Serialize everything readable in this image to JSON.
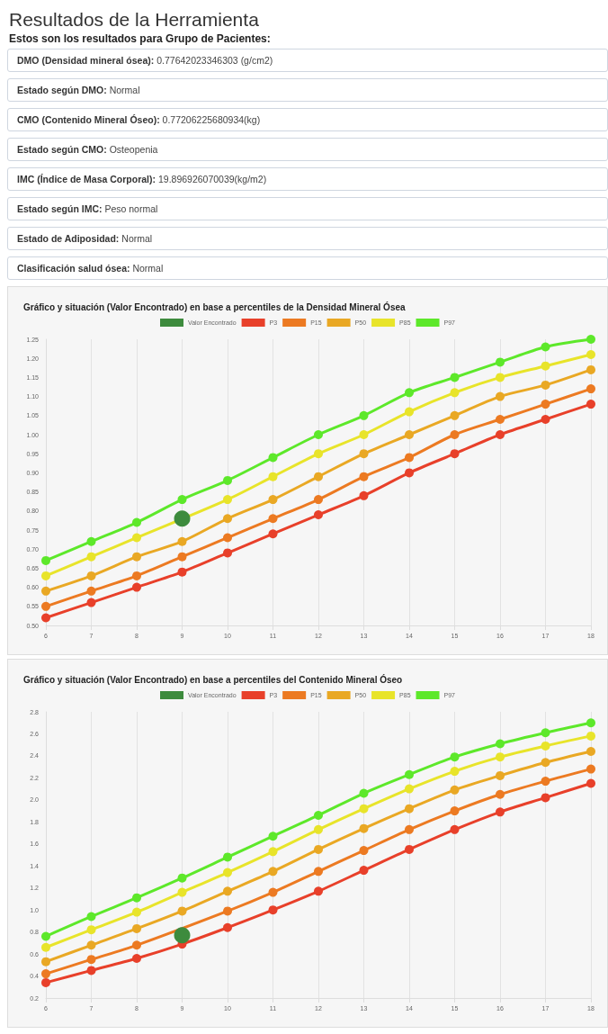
{
  "chart_data": [
    {
      "type": "other",
      "title": "Resultados de la Herramienta",
      "subtitle": "Estos son los resultados para Grupo de Pacientes:",
      "annotations": [
        "DMO (Densidad mineral ósea): 0.77642023346303 (g/cm2)",
        "Estado según DMO: Normal",
        "CMO (Contenido Mineral Óseo): 0.77206225680934(kg)",
        "Estado según CMO: Osteopenia",
        "IMC (Índice de Masa Corporal): 19.896926070039(kg/m2)",
        "Estado según IMC: Peso normal",
        "Estado de Adiposidad: Normal",
        "Clasificación salud ósea: Normal"
      ]
    },
    {
      "type": "line",
      "title": "Gráfico y situación (Valor Encontrado) en base a percentiles de la Densidad Mineral Ósea",
      "x": [
        6,
        7,
        8,
        9,
        10,
        11,
        12,
        13,
        14,
        15,
        16,
        17,
        18
      ],
      "xlim": [
        6,
        18
      ],
      "xticks": [
        6,
        7,
        8,
        9,
        10,
        11,
        12,
        13,
        14,
        15,
        16,
        17,
        18
      ],
      "ylim": [
        0.5,
        1.25
      ],
      "yticks": [
        {
          "value": 0.5,
          "label": "0.50"
        },
        {
          "value": 0.55,
          "label": "0.55"
        },
        {
          "value": 0.6,
          "label": "0.60"
        },
        {
          "value": 0.65,
          "label": "0.65"
        },
        {
          "value": 0.7,
          "label": "0.70"
        },
        {
          "value": 0.75,
          "label": "0.75"
        },
        {
          "value": 0.8,
          "label": "0.80"
        },
        {
          "value": 0.85,
          "label": "0.85"
        },
        {
          "value": 0.9,
          "label": "0.90"
        },
        {
          "value": 0.95,
          "label": "0.95"
        },
        {
          "value": 1.0,
          "label": "1.00"
        },
        {
          "value": 1.05,
          "label": "1.05"
        },
        {
          "value": 1.1,
          "label": "1.10"
        },
        {
          "value": 1.15,
          "label": "1.15"
        },
        {
          "value": 1.2,
          "label": "1.20"
        },
        {
          "value": 1.25,
          "label": "1.25"
        }
      ],
      "grid": "x",
      "legend": "top",
      "marker": "circle",
      "line_style": "solid",
      "series": [
        {
          "name": "Valor Encontrado",
          "type": "scatter",
          "color": "#3d8b3d",
          "x": [
            9
          ],
          "values": [
            0.78
          ]
        },
        {
          "name": "P3",
          "color": "#e8402a",
          "values": [
            0.52,
            0.56,
            0.6,
            0.64,
            0.69,
            0.74,
            0.79,
            0.84,
            0.9,
            0.95,
            1.0,
            1.04,
            1.08
          ]
        },
        {
          "name": "P15",
          "color": "#ec7a22",
          "values": [
            0.55,
            0.59,
            0.63,
            0.68,
            0.73,
            0.78,
            0.83,
            0.89,
            0.94,
            1.0,
            1.04,
            1.08,
            1.12
          ]
        },
        {
          "name": "P50",
          "color": "#e9a824",
          "values": [
            0.59,
            0.63,
            0.68,
            0.72,
            0.78,
            0.83,
            0.89,
            0.95,
            1.0,
            1.05,
            1.1,
            1.13,
            1.17
          ]
        },
        {
          "name": "P85",
          "color": "#e8e42a",
          "values": [
            0.63,
            0.68,
            0.73,
            null,
            0.83,
            0.89,
            0.95,
            1.0,
            1.06,
            1.11,
            1.15,
            1.18,
            1.21
          ]
        },
        {
          "name": "P97",
          "color": "#5de82a",
          "values": [
            0.67,
            0.72,
            0.77,
            0.83,
            0.88,
            0.94,
            1.0,
            1.05,
            1.11,
            1.15,
            1.19,
            1.23,
            1.25
          ]
        }
      ]
    },
    {
      "type": "line",
      "title": "Gráfico y situación (Valor Encontrado) en base a percentiles del Contenido Mineral Óseo",
      "x": [
        6,
        7,
        8,
        9,
        10,
        11,
        12,
        13,
        14,
        15,
        16,
        17,
        18
      ],
      "xlim": [
        6,
        18
      ],
      "xticks": [
        6,
        7,
        8,
        9,
        10,
        11,
        12,
        13,
        14,
        15,
        16,
        17,
        18
      ],
      "ylim": [
        0.2,
        2.8
      ],
      "yticks": [
        {
          "value": 0.2,
          "label": "0.2"
        },
        {
          "value": 0.4,
          "label": "0.4"
        },
        {
          "value": 0.6,
          "label": "0.6"
        },
        {
          "value": 0.8,
          "label": "0.8"
        },
        {
          "value": 1.0,
          "label": "1.0"
        },
        {
          "value": 1.2,
          "label": "1.2"
        },
        {
          "value": 1.4,
          "label": "1.4"
        },
        {
          "value": 1.6,
          "label": "1.6"
        },
        {
          "value": 1.8,
          "label": "1.8"
        },
        {
          "value": 2.0,
          "label": "2.0"
        },
        {
          "value": 2.2,
          "label": "2.2"
        },
        {
          "value": 2.4,
          "label": "2.4"
        },
        {
          "value": 2.6,
          "label": "2.6"
        },
        {
          "value": 2.8,
          "label": "2.8"
        }
      ],
      "grid": "x",
      "legend": "top",
      "marker": "circle",
      "line_style": "solid",
      "series": [
        {
          "name": "Valor Encontrado",
          "type": "scatter",
          "color": "#3d8b3d",
          "x": [
            9
          ],
          "values": [
            0.77
          ]
        },
        {
          "name": "P3",
          "color": "#e8402a",
          "values": [
            0.34,
            0.45,
            0.56,
            0.69,
            0.84,
            1.0,
            1.17,
            1.36,
            1.55,
            1.73,
            1.89,
            2.02,
            2.15
          ]
        },
        {
          "name": "P15",
          "color": "#ec7a22",
          "values": [
            0.42,
            0.55,
            0.68,
            null,
            0.99,
            1.16,
            1.35,
            1.54,
            1.73,
            1.9,
            2.05,
            2.17,
            2.28
          ]
        },
        {
          "name": "P50",
          "color": "#e9a824",
          "values": [
            0.53,
            0.68,
            0.83,
            0.99,
            1.17,
            1.35,
            1.55,
            1.74,
            1.92,
            2.09,
            2.22,
            2.34,
            2.44
          ]
        },
        {
          "name": "P85",
          "color": "#e8e42a",
          "values": [
            0.66,
            0.82,
            0.98,
            1.16,
            1.34,
            1.53,
            1.73,
            1.92,
            2.1,
            2.26,
            2.39,
            2.49,
            2.58
          ]
        },
        {
          "name": "P97",
          "color": "#5de82a",
          "values": [
            0.76,
            0.94,
            1.11,
            1.29,
            1.48,
            1.67,
            1.86,
            2.06,
            2.23,
            2.39,
            2.51,
            2.61,
            2.7
          ]
        }
      ]
    }
  ]
}
